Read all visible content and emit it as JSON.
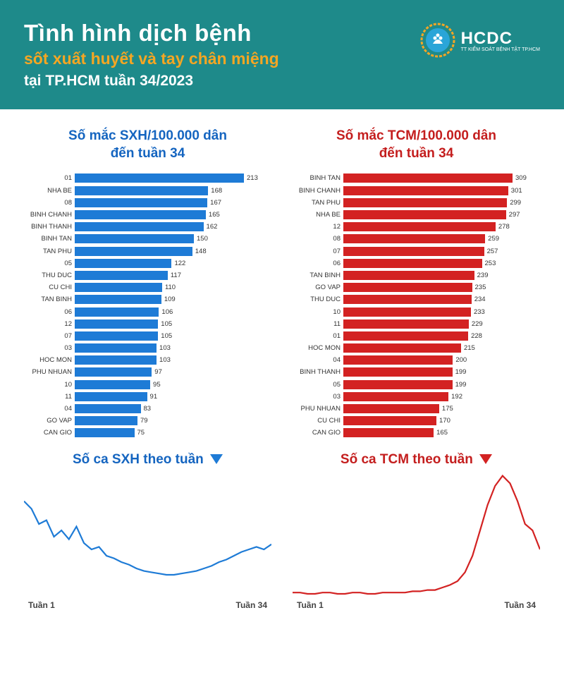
{
  "header": {
    "title": "Tình hình dịch bệnh",
    "subtitle": "sốt xuất huyết và tay chân miệng",
    "location": "tại TP.HCM tuần 34/2023",
    "subtitle_color": "#f5a623",
    "background_color": "#1e8a8a",
    "logo_text": "HCDC",
    "logo_sub": "TT KIỂM SOÁT BỆNH TẬT TP.HCM"
  },
  "sxh_bar": {
    "title_l1": "Số mắc SXH/100.000 dân",
    "title_l2": "đến tuần 34",
    "title_color": "#1565c0",
    "bar_color": "#1e7bd6",
    "max": 213,
    "rows": [
      {
        "label": "01",
        "value": 213
      },
      {
        "label": "NHA BE",
        "value": 168
      },
      {
        "label": "08",
        "value": 167
      },
      {
        "label": "BINH CHANH",
        "value": 165
      },
      {
        "label": "BINH THANH",
        "value": 162
      },
      {
        "label": "BINH TAN",
        "value": 150
      },
      {
        "label": "TAN PHU",
        "value": 148
      },
      {
        "label": "05",
        "value": 122
      },
      {
        "label": "THU DUC",
        "value": 117
      },
      {
        "label": "CU CHI",
        "value": 110
      },
      {
        "label": "TAN BINH",
        "value": 109
      },
      {
        "label": "06",
        "value": 106
      },
      {
        "label": "12",
        "value": 105
      },
      {
        "label": "07",
        "value": 105
      },
      {
        "label": "03",
        "value": 103
      },
      {
        "label": "HOC MON",
        "value": 103
      },
      {
        "label": "PHU NHUAN",
        "value": 97
      },
      {
        "label": "10",
        "value": 95
      },
      {
        "label": "11",
        "value": 91
      },
      {
        "label": "04",
        "value": 83
      },
      {
        "label": "GO VAP",
        "value": 79
      },
      {
        "label": "CAN GIO",
        "value": 75
      }
    ]
  },
  "tcm_bar": {
    "title_l1": "Số mắc TCM/100.000 dân",
    "title_l2": "đến tuần 34",
    "title_color": "#c41e1e",
    "bar_color": "#d32222",
    "max": 309,
    "rows": [
      {
        "label": "BINH TAN",
        "value": 309
      },
      {
        "label": "BINH CHANH",
        "value": 301
      },
      {
        "label": "TAN PHU",
        "value": 299
      },
      {
        "label": "NHA BE",
        "value": 297
      },
      {
        "label": "12",
        "value": 278
      },
      {
        "label": "08",
        "value": 259
      },
      {
        "label": "07",
        "value": 257
      },
      {
        "label": "06",
        "value": 253
      },
      {
        "label": "TAN BINH",
        "value": 239
      },
      {
        "label": "GO VAP",
        "value": 235
      },
      {
        "label": "THU DUC",
        "value": 234
      },
      {
        "label": "10",
        "value": 233
      },
      {
        "label": "11",
        "value": 229
      },
      {
        "label": "01",
        "value": 228
      },
      {
        "label": "HOC MON",
        "value": 215
      },
      {
        "label": "04",
        "value": 200
      },
      {
        "label": "BINH THANH",
        "value": 199
      },
      {
        "label": "05",
        "value": 199
      },
      {
        "label": "03",
        "value": 192
      },
      {
        "label": "PHU NHUAN",
        "value": 175
      },
      {
        "label": "CU CHI",
        "value": 170
      },
      {
        "label": "CAN GIO",
        "value": 165
      }
    ]
  },
  "sxh_line": {
    "title": "Số ca SXH theo tuần",
    "color": "#1e7bd6",
    "xlabel_left": "Tuần 1",
    "xlabel_right": "Tuần 34",
    "ylim": [
      0,
      100
    ],
    "points": [
      78,
      72,
      60,
      63,
      50,
      55,
      48,
      58,
      45,
      40,
      42,
      35,
      33,
      30,
      28,
      25,
      23,
      22,
      21,
      20,
      20,
      21,
      22,
      23,
      25,
      27,
      30,
      32,
      35,
      38,
      40,
      42,
      40,
      44
    ]
  },
  "tcm_line": {
    "title": "Số ca TCM theo tuần",
    "color": "#d32222",
    "xlabel_left": "Tuần 1",
    "xlabel_right": "Tuần 34",
    "ylim": [
      0,
      100
    ],
    "points": [
      6,
      6,
      5,
      5,
      6,
      6,
      5,
      5,
      6,
      6,
      5,
      5,
      6,
      6,
      6,
      6,
      7,
      7,
      8,
      8,
      10,
      12,
      15,
      22,
      35,
      55,
      75,
      90,
      98,
      92,
      78,
      60,
      55,
      40
    ]
  }
}
